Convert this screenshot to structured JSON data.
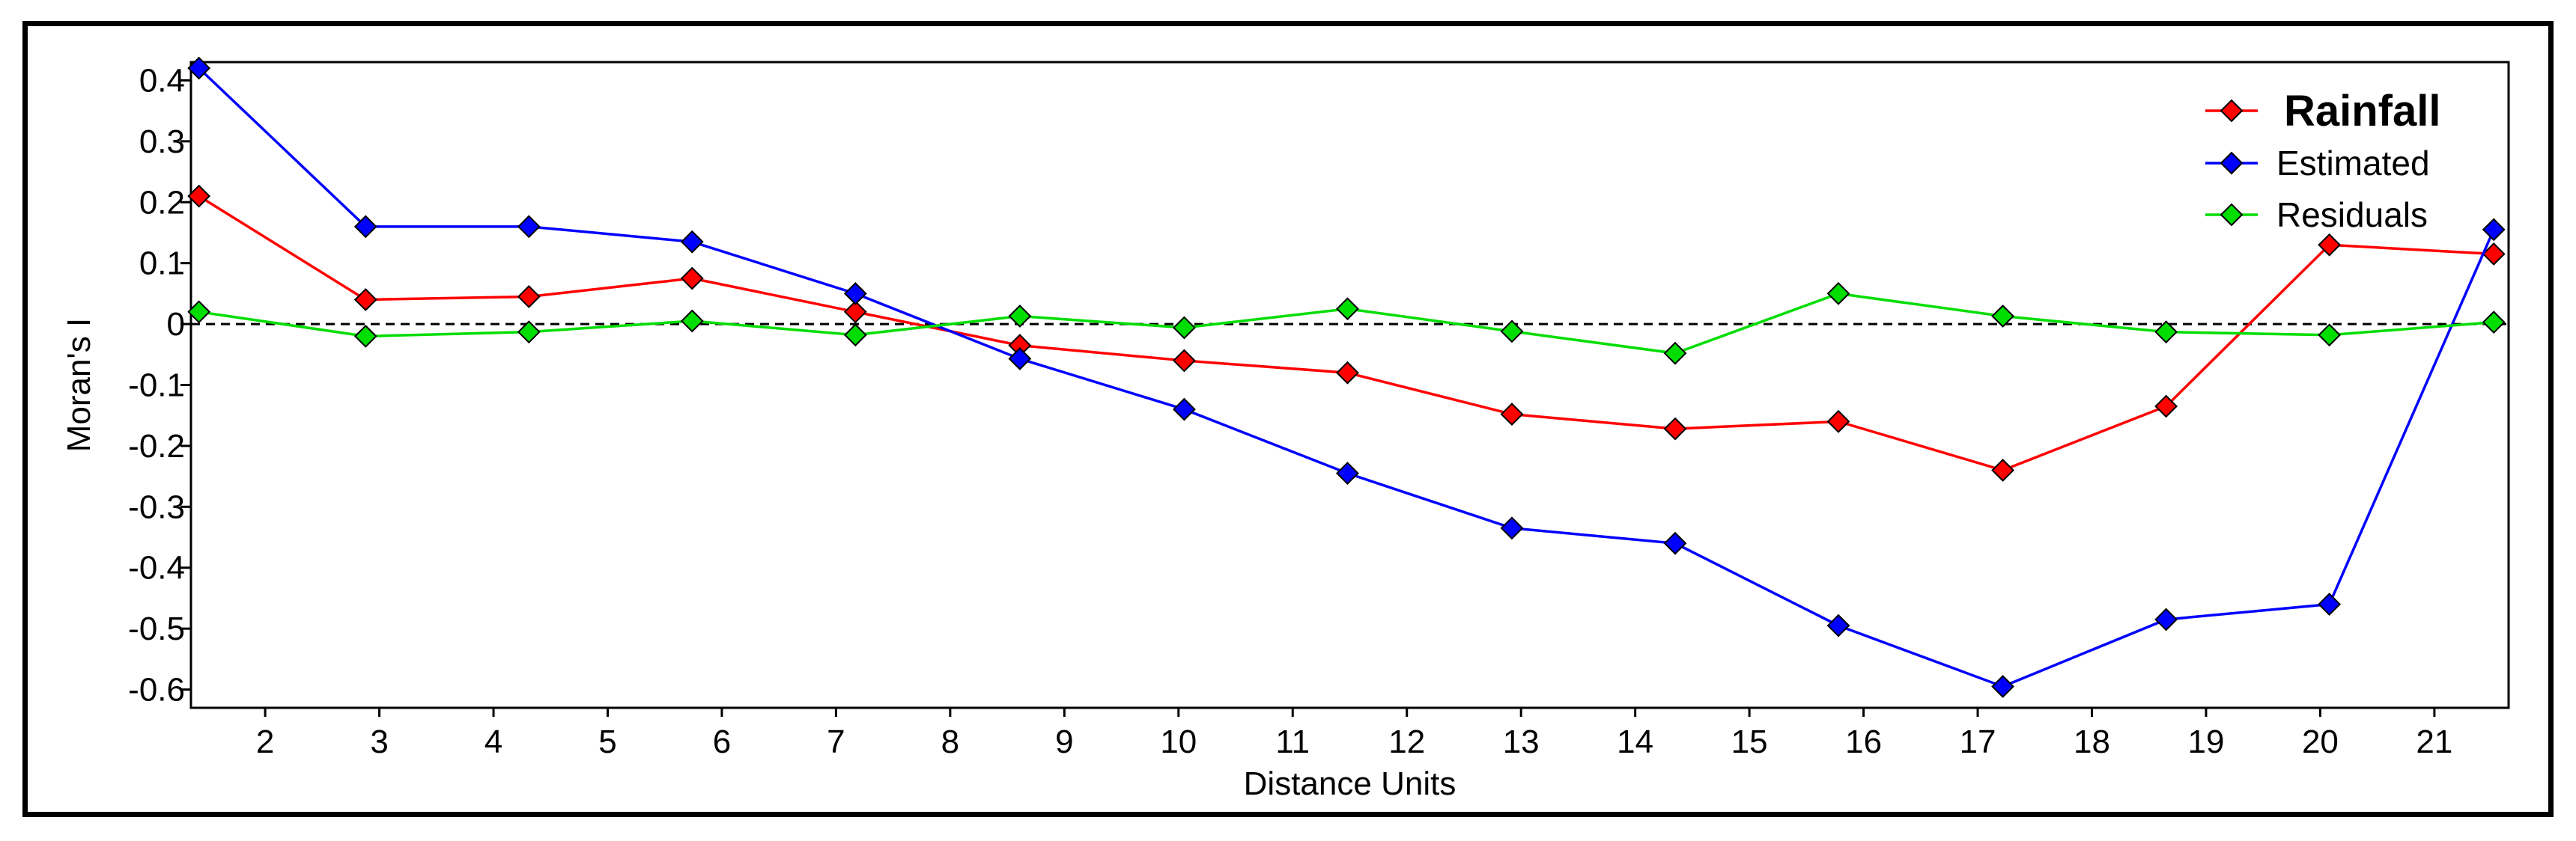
{
  "chart_data": {
    "type": "line",
    "xlabel": "Distance Units",
    "ylabel": "Moran's I",
    "x_tick_labels": [
      "2",
      "3",
      "4",
      "5",
      "6",
      "7",
      "8",
      "9",
      "10",
      "11",
      "12",
      "13",
      "14",
      "15",
      "16",
      "17",
      "18",
      "19",
      "20",
      "21"
    ],
    "y_tick_labels": [
      "0.4",
      "0.3",
      "0.2",
      "0.1",
      "0",
      "-0.1",
      "-0.2",
      "-0.3",
      "-0.4",
      "-0.5",
      "-0.6"
    ],
    "y_tick_values": [
      0.4,
      0.3,
      0.2,
      0.1,
      0,
      -0.1,
      -0.2,
      -0.3,
      -0.4,
      -0.5,
      -0.6
    ],
    "xlim": [
      1.35,
      21.65
    ],
    "ylim": [
      -0.63,
      0.43
    ],
    "grid": false,
    "zero_line": "dashed",
    "legend_position": "top-right",
    "x": [
      1.42,
      2.88,
      4.31,
      5.74,
      7.17,
      8.61,
      10.05,
      11.48,
      12.92,
      14.35,
      15.78,
      17.22,
      18.65,
      20.08,
      21.52
    ],
    "series": [
      {
        "name": "Rainfall",
        "color": "#ff0000",
        "legend_emphasis": true,
        "values": [
          0.21,
          0.04,
          0.045,
          0.075,
          0.02,
          -0.035,
          -0.06,
          -0.08,
          -0.148,
          -0.172,
          -0.16,
          -0.24,
          -0.135,
          0.13,
          0.115
        ]
      },
      {
        "name": "Estimated",
        "color": "#0000ff",
        "legend_emphasis": false,
        "values": [
          0.42,
          0.16,
          0.16,
          0.135,
          0.05,
          -0.057,
          -0.14,
          -0.245,
          -0.335,
          -0.36,
          -0.495,
          -0.595,
          -0.485,
          -0.46,
          0.155
        ]
      },
      {
        "name": "Residuals",
        "color": "#00dd00",
        "legend_emphasis": false,
        "values": [
          0.02,
          -0.02,
          -0.013,
          0.005,
          -0.018,
          0.013,
          -0.006,
          0.025,
          -0.012,
          -0.048,
          0.05,
          0.013,
          -0.013,
          -0.018,
          0.003
        ]
      }
    ]
  }
}
